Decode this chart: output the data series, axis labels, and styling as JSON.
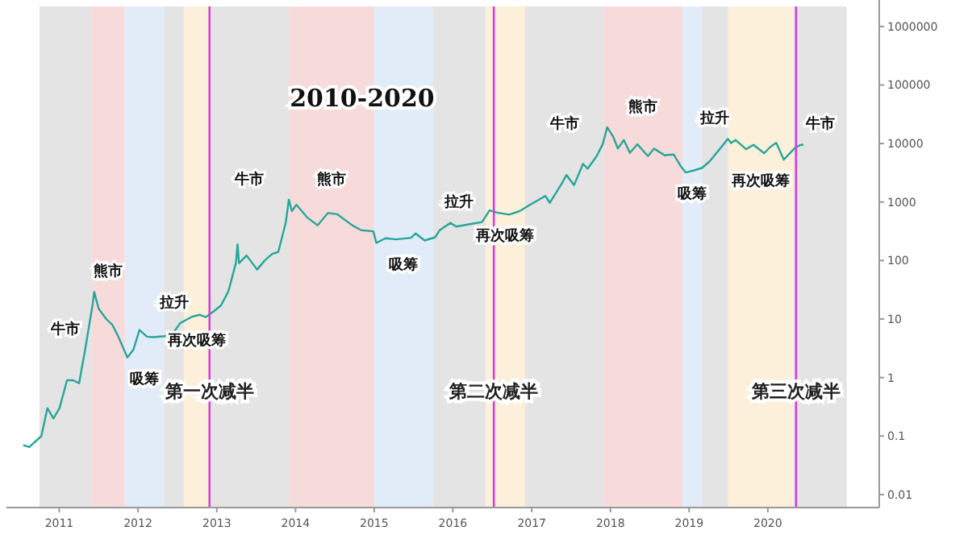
{
  "chart_data": {
    "type": "line",
    "title": "2010-2020",
    "log": "y",
    "grid": false,
    "xlim": [
      "2010-05",
      "2021-06"
    ],
    "ylim": [
      0.006,
      2200000
    ],
    "xticks": [
      "2011",
      "2012",
      "2013",
      "2014",
      "2015",
      "2016",
      "2017",
      "2018",
      "2019",
      "2020"
    ],
    "yticks": [
      0.01,
      0.1,
      1,
      10,
      100,
      1000,
      10000,
      100000,
      1000000
    ],
    "series": [
      {
        "color": "#26a69a",
        "x": [
          "2010-07-18",
          "2010-08-15",
          "2010-10-10",
          "2010-11-07",
          "2010-12-05",
          "2011-01-02",
          "2011-02-06",
          "2011-03-06",
          "2011-04-03",
          "2011-05-01",
          "2011-06-05",
          "2011-06-12",
          "2011-07-03",
          "2011-08-07",
          "2011-09-04",
          "2011-10-02",
          "2011-11-13",
          "2011-12-11",
          "2012-01-08",
          "2012-02-12",
          "2012-03-11",
          "2012-05-06",
          "2012-06-10",
          "2012-07-15",
          "2012-08-19",
          "2012-09-09",
          "2012-10-14",
          "2012-11-11",
          "2012-12-16",
          "2013-01-20",
          "2013-02-24",
          "2013-03-31",
          "2013-04-07",
          "2013-04-14",
          "2013-05-19",
          "2013-07-07",
          "2013-08-11",
          "2013-09-15",
          "2013-10-13",
          "2013-11-17",
          "2013-12-01",
          "2013-12-15",
          "2014-01-05",
          "2014-02-23",
          "2014-04-13",
          "2014-06-01",
          "2014-07-13",
          "2014-09-21",
          "2014-11-02",
          "2014-12-28",
          "2015-01-11",
          "2015-02-22",
          "2015-04-12",
          "2015-06-21",
          "2015-07-12",
          "2015-08-23",
          "2015-10-11",
          "2015-11-01",
          "2015-12-20",
          "2016-01-17",
          "2016-03-13",
          "2016-05-15",
          "2016-06-19",
          "2016-07-24",
          "2016-09-18",
          "2016-11-06",
          "2016-12-25",
          "2017-03-05",
          "2017-03-26",
          "2017-05-21",
          "2017-06-11",
          "2017-07-16",
          "2017-08-27",
          "2017-09-17",
          "2017-10-29",
          "2017-11-26",
          "2017-12-17",
          "2018-01-14",
          "2018-02-04",
          "2018-03-04",
          "2018-04-01",
          "2018-05-06",
          "2018-06-24",
          "2018-07-22",
          "2018-09-09",
          "2018-10-21",
          "2018-11-25",
          "2018-12-16",
          "2019-01-27",
          "2019-03-03",
          "2019-04-07",
          "2019-05-12",
          "2019-06-30",
          "2019-07-14",
          "2019-08-04",
          "2019-09-22",
          "2019-10-27",
          "2019-12-15",
          "2020-01-12",
          "2020-02-09",
          "2020-03-15",
          "2020-04-26",
          "2020-05-10",
          "2020-06-07",
          "2020-06-14"
        ],
        "values": [
          0.07,
          0.065,
          0.1,
          0.3,
          0.2,
          0.3,
          0.9,
          0.9,
          0.8,
          3,
          18,
          29,
          15,
          10,
          8,
          5,
          2.2,
          3,
          6.5,
          5,
          4.9,
          5.1,
          5.6,
          8.5,
          10,
          11,
          11.8,
          10.8,
          13.4,
          17,
          30,
          93,
          190,
          90,
          122,
          70,
          100,
          130,
          140,
          450,
          1100,
          700,
          900,
          550,
          400,
          650,
          620,
          400,
          330,
          315,
          200,
          240,
          230,
          245,
          290,
          220,
          250,
          330,
          440,
          380,
          415,
          455,
          720,
          660,
          610,
          700,
          900,
          1270,
          970,
          2100,
          2900,
          1950,
          4500,
          3700,
          6100,
          9700,
          19000,
          13000,
          8200,
          11500,
          6900,
          9700,
          6100,
          8200,
          6300,
          6500,
          4000,
          3200,
          3500,
          3850,
          5000,
          7200,
          12000,
          10200,
          11500,
          8000,
          9500,
          6800,
          8700,
          10300,
          5300,
          7700,
          8700,
          9600,
          9300
        ]
      }
    ],
    "bands": [
      {
        "axis": "x",
        "from": "2010-10",
        "to": "2011-06",
        "color": "#d9d9d9",
        "label": "牛市"
      },
      {
        "axis": "x",
        "from": "2011-06",
        "to": "2011-11",
        "color": "#f4cccc",
        "label": "熊市"
      },
      {
        "axis": "x",
        "from": "2011-11",
        "to": "2012-05",
        "color": "#d6e4f5",
        "label": "吸筹"
      },
      {
        "axis": "x",
        "from": "2012-05",
        "to": "2012-08",
        "color": "#d9d9d9",
        "label": "拉升"
      },
      {
        "axis": "x",
        "from": "2012-08",
        "to": "2012-12",
        "color": "#fbeacc",
        "label": "再次吸筹"
      },
      {
        "axis": "x",
        "from": "2012-12",
        "to": "2013-12",
        "color": "#d9d9d9",
        "label": "牛市"
      },
      {
        "axis": "x",
        "from": "2013-12",
        "to": "2015-01",
        "color": "#f4cccc",
        "label": "熊市"
      },
      {
        "axis": "x",
        "from": "2015-01",
        "to": "2015-10",
        "color": "#d6e4f5",
        "label": "吸筹"
      },
      {
        "axis": "x",
        "from": "2015-10",
        "to": "2016-06",
        "color": "#d9d9d9",
        "label": "拉升"
      },
      {
        "axis": "x",
        "from": "2016-06",
        "to": "2016-12",
        "color": "#fbeacc",
        "label": "再次吸筹"
      },
      {
        "axis": "x",
        "from": "2016-12",
        "to": "2017-12",
        "color": "#d9d9d9",
        "label": "牛市"
      },
      {
        "axis": "x",
        "from": "2017-12",
        "to": "2018-12",
        "color": "#f4cccc",
        "label": "熊市"
      },
      {
        "axis": "x",
        "from": "2018-12",
        "to": "2019-03",
        "color": "#d6e4f5",
        "label": "吸筹"
      },
      {
        "axis": "x",
        "from": "2019-03",
        "to": "2019-07",
        "color": "#d9d9d9",
        "label": "拉升"
      },
      {
        "axis": "x",
        "from": "2019-07",
        "to": "2020-05",
        "color": "#fbeacc",
        "label": "再次吸筹"
      },
      {
        "axis": "x",
        "from": "2020-05",
        "to": "2021-01",
        "color": "#d9d9d9",
        "label": "牛市"
      }
    ],
    "ref_lines": [
      {
        "axis": "x",
        "value": "2012-11-28",
        "label": "第一次减半",
        "color": "#d63fd6"
      },
      {
        "axis": "x",
        "value": "2016-07-09",
        "label": "第二次减半",
        "color": "#d63fd6"
      },
      {
        "axis": "x",
        "value": "2020-05-11",
        "label": "第三次减半",
        "color": "#d63fd6"
      }
    ]
  }
}
